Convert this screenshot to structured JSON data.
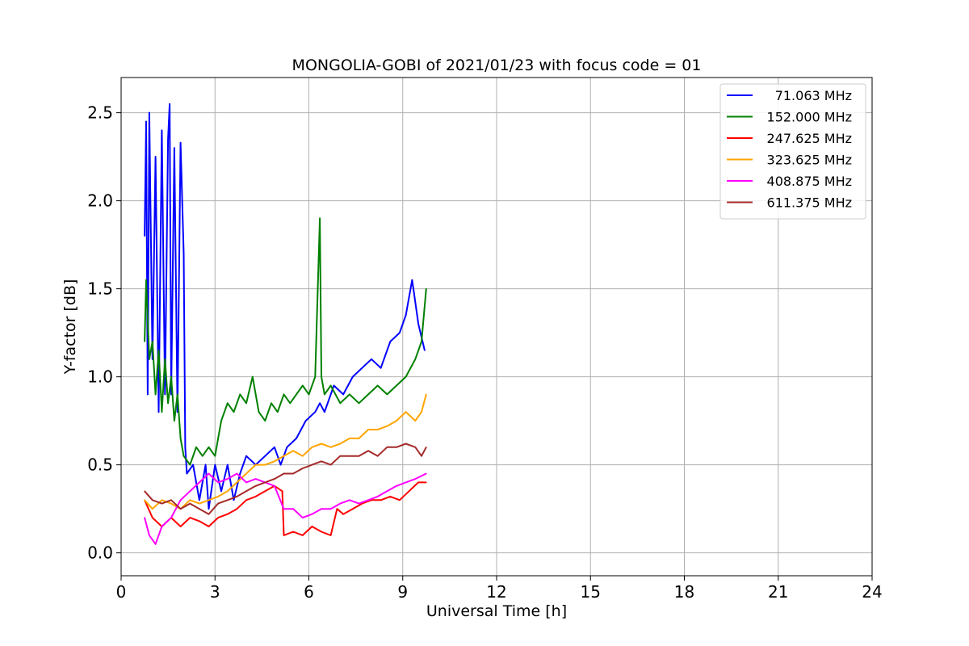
{
  "chart_data": {
    "type": "line",
    "title": "MONGOLIA-GOBI of 2021/01/23 with focus code = 01",
    "xlabel": "Universal Time [h]",
    "ylabel": "Y-factor [dB]",
    "xlim": [
      0,
      24
    ],
    "ylim": [
      -0.13,
      2.7
    ],
    "xticks": [
      0,
      3,
      6,
      9,
      12,
      15,
      18,
      21,
      24
    ],
    "xtick_labels": [
      "0",
      "3",
      "6",
      "9",
      "12",
      "15",
      "18",
      "21",
      "24"
    ],
    "yticks": [
      0.0,
      0.5,
      1.0,
      1.5,
      2.0,
      2.5
    ],
    "ytick_labels": [
      "0.0",
      "0.5",
      "1.0",
      "1.5",
      "2.0",
      "2.5"
    ],
    "grid": true,
    "legend_position": "top-right",
    "series": [
      {
        "name": "71.063 MHz",
        "color": "#0000ff",
        "x": [
          0.75,
          0.8,
          0.85,
          0.9,
          1.0,
          1.1,
          1.2,
          1.3,
          1.4,
          1.5,
          1.55,
          1.6,
          1.7,
          1.8,
          1.9,
          2.0,
          2.05,
          2.1,
          2.3,
          2.5,
          2.7,
          2.8,
          3.0,
          3.2,
          3.4,
          3.6,
          3.8,
          4.0,
          4.3,
          4.6,
          4.9,
          5.1,
          5.3,
          5.6,
          5.9,
          6.2,
          6.35,
          6.5,
          6.8,
          7.1,
          7.4,
          7.7,
          8.0,
          8.3,
          8.6,
          8.9,
          9.1,
          9.3,
          9.5,
          9.7
        ],
        "values": [
          1.8,
          2.45,
          0.9,
          2.5,
          1.1,
          2.25,
          0.8,
          2.4,
          0.9,
          2.35,
          2.55,
          0.9,
          2.3,
          0.8,
          2.33,
          1.7,
          0.6,
          0.45,
          0.5,
          0.3,
          0.5,
          0.25,
          0.5,
          0.35,
          0.5,
          0.3,
          0.45,
          0.55,
          0.5,
          0.55,
          0.6,
          0.5,
          0.6,
          0.65,
          0.75,
          0.8,
          0.85,
          0.8,
          0.95,
          0.9,
          1.0,
          1.05,
          1.1,
          1.05,
          1.2,
          1.25,
          1.35,
          1.55,
          1.3,
          1.15
        ]
      },
      {
        "name": "152.000 MHz",
        "color": "#008000",
        "x": [
          0.75,
          0.8,
          0.9,
          1.0,
          1.1,
          1.2,
          1.3,
          1.4,
          1.5,
          1.6,
          1.7,
          1.8,
          1.9,
          2.0,
          2.2,
          2.4,
          2.6,
          2.8,
          3.0,
          3.2,
          3.4,
          3.6,
          3.8,
          4.0,
          4.2,
          4.4,
          4.6,
          4.8,
          5.0,
          5.2,
          5.4,
          5.6,
          5.8,
          6.0,
          6.2,
          6.35,
          6.4,
          6.5,
          6.7,
          7.0,
          7.3,
          7.6,
          7.9,
          8.2,
          8.5,
          8.8,
          9.1,
          9.4,
          9.6,
          9.75
        ],
        "values": [
          1.2,
          1.55,
          1.1,
          1.2,
          0.9,
          1.15,
          0.8,
          1.1,
          0.85,
          1.0,
          0.75,
          0.9,
          0.65,
          0.55,
          0.5,
          0.6,
          0.55,
          0.6,
          0.55,
          0.75,
          0.85,
          0.8,
          0.9,
          0.85,
          1.0,
          0.8,
          0.75,
          0.85,
          0.8,
          0.9,
          0.85,
          0.9,
          0.95,
          0.9,
          1.0,
          1.9,
          1.0,
          0.9,
          0.95,
          0.85,
          0.9,
          0.85,
          0.9,
          0.95,
          0.9,
          0.95,
          1.0,
          1.1,
          1.2,
          1.5
        ]
      },
      {
        "name": "247.625 MHz",
        "color": "#ff0000",
        "x": [
          0.75,
          1.0,
          1.3,
          1.6,
          1.9,
          2.2,
          2.5,
          2.8,
          3.1,
          3.4,
          3.7,
          4.0,
          4.3,
          4.6,
          4.9,
          5.15,
          5.2,
          5.5,
          5.8,
          6.1,
          6.4,
          6.7,
          6.9,
          7.1,
          7.4,
          7.7,
          8.0,
          8.3,
          8.6,
          8.9,
          9.2,
          9.5,
          9.75
        ],
        "values": [
          0.3,
          0.2,
          0.15,
          0.2,
          0.15,
          0.2,
          0.18,
          0.15,
          0.2,
          0.22,
          0.25,
          0.3,
          0.32,
          0.35,
          0.38,
          0.35,
          0.1,
          0.12,
          0.1,
          0.15,
          0.12,
          0.1,
          0.25,
          0.22,
          0.25,
          0.28,
          0.3,
          0.3,
          0.32,
          0.3,
          0.35,
          0.4,
          0.4
        ]
      },
      {
        "name": "323.625 MHz",
        "color": "#ffa500",
        "x": [
          0.75,
          1.0,
          1.3,
          1.6,
          1.9,
          2.2,
          2.5,
          2.8,
          3.1,
          3.4,
          3.7,
          4.0,
          4.3,
          4.6,
          4.9,
          5.2,
          5.5,
          5.8,
          6.1,
          6.4,
          6.7,
          7.0,
          7.3,
          7.6,
          7.9,
          8.2,
          8.5,
          8.8,
          9.1,
          9.4,
          9.6,
          9.75
        ],
        "values": [
          0.3,
          0.25,
          0.3,
          0.28,
          0.25,
          0.3,
          0.28,
          0.3,
          0.32,
          0.35,
          0.4,
          0.45,
          0.5,
          0.5,
          0.52,
          0.55,
          0.58,
          0.55,
          0.6,
          0.62,
          0.6,
          0.62,
          0.65,
          0.65,
          0.7,
          0.7,
          0.72,
          0.75,
          0.8,
          0.75,
          0.8,
          0.9
        ]
      },
      {
        "name": "408.875 MHz",
        "color": "#ff00ff",
        "x": [
          0.75,
          0.9,
          1.1,
          1.3,
          1.6,
          1.9,
          2.2,
          2.5,
          2.8,
          3.1,
          3.4,
          3.7,
          4.0,
          4.3,
          4.6,
          4.9,
          5.2,
          5.5,
          5.8,
          6.1,
          6.4,
          6.7,
          7.0,
          7.3,
          7.6,
          7.9,
          8.2,
          8.5,
          8.8,
          9.1,
          9.4,
          9.75
        ],
        "values": [
          0.2,
          0.1,
          0.05,
          0.15,
          0.2,
          0.3,
          0.35,
          0.4,
          0.45,
          0.4,
          0.42,
          0.45,
          0.4,
          0.42,
          0.4,
          0.38,
          0.25,
          0.25,
          0.2,
          0.22,
          0.25,
          0.25,
          0.28,
          0.3,
          0.28,
          0.3,
          0.32,
          0.35,
          0.38,
          0.4,
          0.42,
          0.45
        ]
      },
      {
        "name": "611.375 MHz",
        "color": "#a52a2a",
        "x": [
          0.75,
          1.0,
          1.3,
          1.6,
          1.9,
          2.2,
          2.5,
          2.8,
          3.1,
          3.4,
          3.7,
          4.0,
          4.3,
          4.6,
          4.9,
          5.2,
          5.5,
          5.8,
          6.1,
          6.4,
          6.7,
          7.0,
          7.3,
          7.6,
          7.9,
          8.2,
          8.5,
          8.8,
          9.1,
          9.4,
          9.6,
          9.75
        ],
        "values": [
          0.35,
          0.3,
          0.28,
          0.3,
          0.25,
          0.28,
          0.25,
          0.22,
          0.28,
          0.3,
          0.32,
          0.35,
          0.38,
          0.4,
          0.42,
          0.45,
          0.45,
          0.48,
          0.5,
          0.52,
          0.5,
          0.55,
          0.55,
          0.55,
          0.58,
          0.55,
          0.6,
          0.6,
          0.62,
          0.6,
          0.55,
          0.6
        ]
      }
    ]
  }
}
